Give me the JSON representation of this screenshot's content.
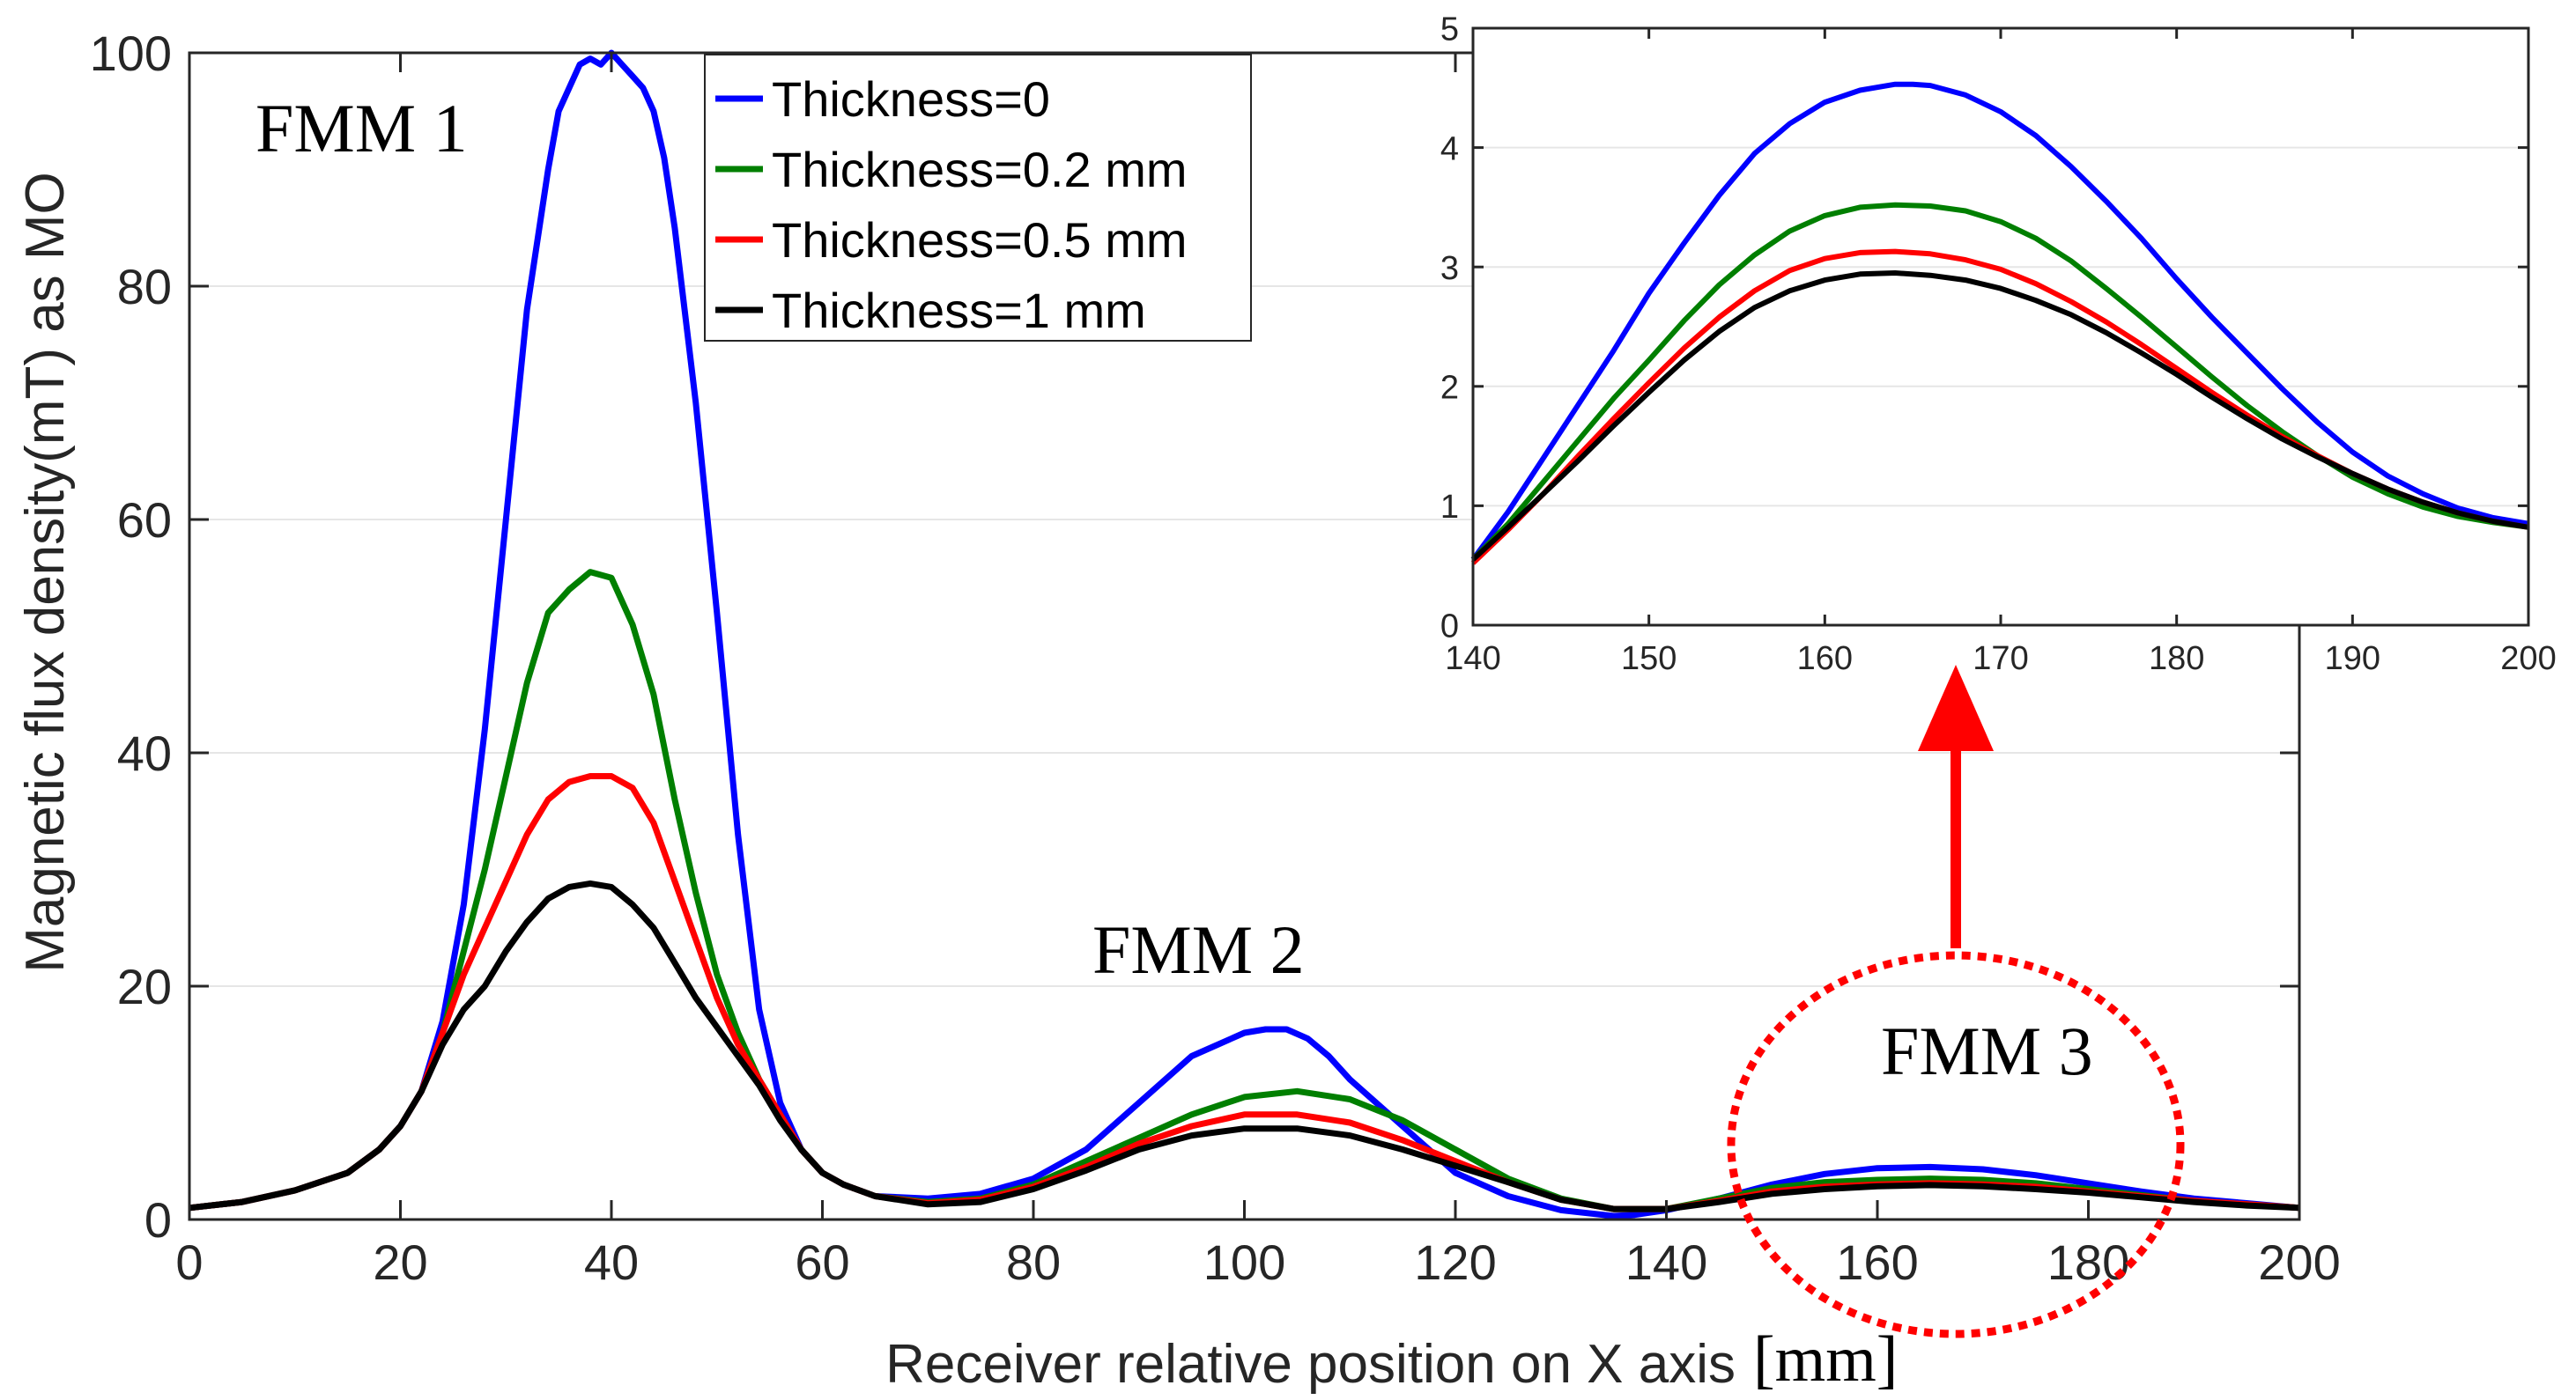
{
  "chart_data": [
    {
      "type": "line",
      "id": "main",
      "xlabel": "Receiver relative position on X axis",
      "xlabel_unit": "[mm]",
      "ylabel": "Magnetic flux density(mT) as MO",
      "xlim": [
        0,
        200
      ],
      "ylim": [
        0,
        100
      ],
      "xticks": [
        0,
        20,
        40,
        60,
        80,
        100,
        120,
        140,
        160,
        180,
        200
      ],
      "yticks": [
        0,
        20,
        40,
        60,
        80,
        100
      ],
      "grid": "horizontal",
      "legend_position": "top-left",
      "annotations": [
        {
          "text": "FMM 1",
          "x": 24,
          "y": 92
        },
        {
          "text": "FMM 2",
          "x": 86,
          "y": 22
        },
        {
          "text": "FMM 3",
          "x": 160,
          "y": 13
        }
      ],
      "series": [
        {
          "name": "Thickness=0",
          "color": "#0000ff",
          "x": [
            0,
            5,
            10,
            15,
            18,
            20,
            22,
            24,
            26,
            28,
            30,
            32,
            34,
            35,
            36,
            37,
            38,
            39,
            40,
            41,
            42,
            43,
            44,
            45,
            46,
            48,
            50,
            52,
            54,
            56,
            58,
            60,
            62,
            65,
            70,
            75,
            80,
            85,
            90,
            95,
            100,
            102,
            104,
            106,
            108,
            110,
            115,
            120,
            125,
            130,
            135,
            137,
            140,
            145,
            150,
            155,
            160,
            165,
            170,
            175,
            180,
            185,
            190,
            195,
            200
          ],
          "y": [
            1,
            1.5,
            2.5,
            4,
            6,
            8,
            11,
            17,
            27,
            42,
            60,
            78,
            90,
            95,
            97,
            99,
            99.5,
            99,
            100,
            99,
            98,
            97,
            95,
            91,
            85,
            70,
            52,
            33,
            18,
            10,
            6,
            4,
            3,
            2,
            1.8,
            2.2,
            3.5,
            6,
            10,
            14,
            16,
            16.3,
            16.3,
            15.5,
            14,
            12,
            8,
            4,
            2,
            0.8,
            0.3,
            0.4,
            0.8,
            1.8,
            3,
            3.9,
            4.4,
            4.5,
            4.3,
            3.8,
            3.1,
            2.4,
            1.8,
            1.4,
            1
          ]
        },
        {
          "name": "Thickness=0.2 mm",
          "color": "#007f00",
          "x": [
            0,
            5,
            10,
            15,
            18,
            20,
            22,
            24,
            26,
            28,
            30,
            32,
            34,
            36,
            38,
            40,
            42,
            44,
            46,
            48,
            50,
            52,
            54,
            56,
            58,
            60,
            62,
            65,
            70,
            75,
            80,
            85,
            90,
            95,
            100,
            105,
            110,
            115,
            120,
            125,
            130,
            135,
            140,
            145,
            150,
            155,
            160,
            165,
            170,
            175,
            180,
            185,
            190,
            195,
            200
          ],
          "y": [
            1,
            1.5,
            2.5,
            4,
            6,
            8,
            11,
            16,
            23,
            30,
            38,
            46,
            52,
            54,
            55.5,
            55,
            51,
            45,
            36,
            28,
            21,
            16,
            12,
            9,
            6,
            4,
            3,
            2,
            1.5,
            1.8,
            3,
            5,
            7,
            9,
            10.5,
            11,
            10.3,
            8.5,
            6,
            3.5,
            1.8,
            0.9,
            0.9,
            1.8,
            2.7,
            3.2,
            3.4,
            3.5,
            3.4,
            3.1,
            2.6,
            2.1,
            1.6,
            1.3,
            1
          ]
        },
        {
          "name": "Thickness=0.5 mm",
          "color": "#ff0000",
          "x": [
            0,
            5,
            10,
            15,
            18,
            20,
            22,
            24,
            26,
            28,
            30,
            32,
            34,
            36,
            38,
            40,
            42,
            44,
            46,
            48,
            50,
            52,
            54,
            56,
            58,
            60,
            62,
            65,
            70,
            75,
            80,
            85,
            90,
            95,
            100,
            105,
            110,
            115,
            120,
            125,
            130,
            135,
            140,
            145,
            150,
            155,
            160,
            165,
            170,
            175,
            180,
            185,
            190,
            195,
            200
          ],
          "y": [
            1,
            1.5,
            2.5,
            4,
            6,
            8,
            11,
            16,
            21,
            25,
            29,
            33,
            36,
            37.5,
            38,
            38,
            37,
            34,
            29,
            24,
            19,
            15,
            12,
            9,
            6,
            4,
            3,
            2,
            1.4,
            1.7,
            2.8,
            4.5,
            6.5,
            8,
            9,
            9,
            8.3,
            6.8,
            5,
            3.2,
            1.7,
            0.9,
            0.9,
            1.6,
            2.4,
            2.8,
            3,
            3.1,
            3,
            2.8,
            2.4,
            2,
            1.6,
            1.3,
            1
          ]
        },
        {
          "name": "Thickness=1 mm",
          "color": "#000000",
          "x": [
            0,
            5,
            10,
            15,
            18,
            20,
            22,
            24,
            26,
            28,
            30,
            32,
            34,
            36,
            38,
            40,
            42,
            44,
            46,
            48,
            50,
            52,
            54,
            56,
            58,
            60,
            62,
            65,
            70,
            75,
            80,
            85,
            90,
            95,
            100,
            105,
            110,
            115,
            120,
            125,
            130,
            135,
            140,
            145,
            150,
            155,
            160,
            165,
            170,
            175,
            180,
            185,
            190,
            195,
            200
          ],
          "y": [
            1,
            1.5,
            2.5,
            4,
            6,
            8,
            11,
            15,
            18,
            20,
            23,
            25.5,
            27.5,
            28.5,
            28.8,
            28.5,
            27,
            25,
            22,
            19,
            16.5,
            14,
            11.5,
            8.5,
            6,
            4,
            3,
            2,
            1.3,
            1.5,
            2.6,
            4.2,
            6,
            7.2,
            7.8,
            7.8,
            7.2,
            6,
            4.6,
            3.2,
            1.7,
            0.9,
            0.9,
            1.5,
            2.2,
            2.6,
            2.85,
            2.95,
            2.85,
            2.6,
            2.3,
            1.9,
            1.5,
            1.2,
            1
          ]
        }
      ]
    },
    {
      "type": "line",
      "id": "inset",
      "xlim": [
        140,
        200
      ],
      "ylim": [
        0,
        5
      ],
      "xticks": [
        140,
        150,
        160,
        170,
        180,
        190,
        200
      ],
      "yticks": [
        0,
        1,
        2,
        3,
        4,
        5
      ],
      "grid": "horizontal",
      "series": [
        {
          "name": "Thickness=0",
          "color": "#0000ff",
          "x": [
            140,
            142,
            144,
            146,
            148,
            150,
            152,
            154,
            156,
            158,
            160,
            162,
            164,
            165,
            166,
            168,
            170,
            172,
            174,
            176,
            178,
            180,
            182,
            184,
            186,
            188,
            190,
            192,
            194,
            196,
            198,
            200
          ],
          "y": [
            0.55,
            0.95,
            1.4,
            1.85,
            2.3,
            2.78,
            3.2,
            3.6,
            3.95,
            4.2,
            4.38,
            4.48,
            4.53,
            4.53,
            4.52,
            4.44,
            4.3,
            4.1,
            3.84,
            3.55,
            3.24,
            2.9,
            2.58,
            2.28,
            1.98,
            1.7,
            1.45,
            1.25,
            1.1,
            0.98,
            0.9,
            0.85
          ]
        },
        {
          "name": "Thickness=0.2 mm",
          "color": "#007f00",
          "x": [
            140,
            142,
            144,
            146,
            148,
            150,
            152,
            154,
            156,
            158,
            160,
            162,
            164,
            166,
            168,
            170,
            172,
            174,
            176,
            178,
            180,
            182,
            184,
            186,
            188,
            190,
            192,
            194,
            196,
            198,
            200
          ],
          "y": [
            0.55,
            0.85,
            1.2,
            1.55,
            1.9,
            2.22,
            2.55,
            2.85,
            3.1,
            3.3,
            3.43,
            3.5,
            3.52,
            3.51,
            3.47,
            3.38,
            3.24,
            3.05,
            2.82,
            2.58,
            2.33,
            2.08,
            1.84,
            1.62,
            1.42,
            1.24,
            1.1,
            0.99,
            0.91,
            0.86,
            0.82
          ]
        },
        {
          "name": "Thickness=0.5 mm",
          "color": "#ff0000",
          "x": [
            140,
            142,
            144,
            146,
            148,
            150,
            152,
            154,
            156,
            158,
            160,
            162,
            164,
            166,
            168,
            170,
            172,
            174,
            176,
            178,
            180,
            182,
            184,
            186,
            188,
            190,
            192,
            194,
            196,
            198,
            200
          ],
          "y": [
            0.52,
            0.8,
            1.1,
            1.42,
            1.73,
            2.03,
            2.32,
            2.58,
            2.8,
            2.97,
            3.07,
            3.12,
            3.13,
            3.11,
            3.06,
            2.98,
            2.86,
            2.71,
            2.54,
            2.35,
            2.15,
            1.95,
            1.76,
            1.58,
            1.42,
            1.27,
            1.14,
            1.03,
            0.94,
            0.87,
            0.82
          ]
        },
        {
          "name": "Thickness=1 mm",
          "color": "#000000",
          "x": [
            140,
            142,
            144,
            146,
            148,
            150,
            152,
            154,
            156,
            158,
            160,
            162,
            164,
            166,
            168,
            170,
            172,
            174,
            176,
            178,
            180,
            182,
            184,
            186,
            188,
            190,
            192,
            194,
            196,
            198,
            200
          ],
          "y": [
            0.55,
            0.82,
            1.1,
            1.38,
            1.67,
            1.95,
            2.22,
            2.46,
            2.66,
            2.8,
            2.89,
            2.94,
            2.95,
            2.93,
            2.89,
            2.82,
            2.72,
            2.6,
            2.45,
            2.28,
            2.1,
            1.91,
            1.73,
            1.56,
            1.41,
            1.27,
            1.14,
            1.03,
            0.94,
            0.87,
            0.82
          ]
        }
      ]
    }
  ],
  "highlight": {
    "ellipse_color": "#ff0000",
    "arrow_color": "#ff0000"
  }
}
